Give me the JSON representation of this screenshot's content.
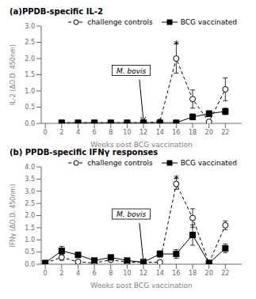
{
  "chart_data": [
    {
      "type": "line",
      "title": "(a)PPDB-specific IL-2",
      "xlabel": "Weeks post BCG vaccination",
      "ylabel": "IL-2 (ΔO.D. 450nm)",
      "xlim": [
        -0.5,
        24
      ],
      "xticks": [
        0,
        2,
        4,
        6,
        8,
        10,
        12,
        14,
        16,
        18,
        20,
        22
      ],
      "ylim": [
        0,
        3.0
      ],
      "yticks": [
        {
          "value": 0,
          "label": "0.0"
        },
        0.5,
        {
          "value": 1,
          "label": "1.0"
        },
        1.5,
        {
          "value": 2,
          "label": "2.0"
        },
        2.5,
        {
          "value": 3,
          "label": "3.0"
        }
      ],
      "grid": false,
      "legend": "upper right",
      "x": [
        2,
        4,
        6,
        8,
        10,
        12,
        14,
        16,
        18,
        20,
        22
      ],
      "series": [
        {
          "name": "challenge controls",
          "color": "#000000",
          "marker": "circle",
          "line_style": "dashed",
          "values": [
            0.02,
            0.02,
            0.02,
            0.02,
            0.02,
            0.02,
            0.05,
            2.0,
            0.75,
            0.05,
            1.05
          ],
          "errors": [
            0.01,
            0.01,
            0.01,
            0.01,
            0.01,
            0.01,
            0.04,
            0.45,
            0.28,
            0.01,
            0.35
          ]
        },
        {
          "name": "BCG vaccinated",
          "color": "#000000",
          "marker": "square",
          "line_style": "solid",
          "values": [
            0.02,
            0.02,
            0.02,
            0.02,
            0.02,
            0.02,
            0.02,
            0.02,
            0.2,
            0.3,
            0.37
          ],
          "errors": [
            0.01,
            0.01,
            0.01,
            0.01,
            0.01,
            0.01,
            0.01,
            0.01,
            0.09,
            0.09,
            0.1
          ]
        }
      ],
      "annotations": [
        {
          "text": "M. bovis",
          "x": 10.5,
          "y": 1.45,
          "arrow_tail": [
            11.5,
            1.35
          ],
          "arrow_head": [
            12,
            0.05
          ]
        },
        {
          "text": "*",
          "x": 16,
          "y": 2.5
        }
      ]
    },
    {
      "type": "line",
      "title": "(b) PPDB-specific IFNγ responses",
      "xlabel": "Weeks post BCG vaccination",
      "ylabel": "IFNγ (ΔO.D. 450nm)",
      "xlim": [
        -0.5,
        24
      ],
      "xticks": [
        0,
        2,
        4,
        6,
        8,
        10,
        12,
        14,
        16,
        18,
        20,
        22
      ],
      "ylim": [
        0,
        4.0
      ],
      "yticks": [
        {
          "value": 0,
          "label": "0.0"
        },
        0.5,
        {
          "value": 1,
          "label": "1.0"
        },
        1.5,
        {
          "value": 2,
          "label": "2.0"
        },
        2.5,
        {
          "value": 3,
          "label": "3.0"
        },
        3.5,
        {
          "value": 4,
          "label": "4.0"
        }
      ],
      "grid": false,
      "legend": "upper right",
      "x": [
        0,
        2,
        4,
        6,
        8,
        10,
        12,
        14,
        16,
        18,
        20,
        22
      ],
      "series": [
        {
          "name": "challenge controls",
          "color": "#000000",
          "marker": "circle",
          "line_style": "dashed",
          "values": [
            0.05,
            0.28,
            0.1,
            0.05,
            0.18,
            0.08,
            0.08,
            0.08,
            3.3,
            1.9,
            0.05,
            1.6
          ],
          "errors": [
            0.02,
            0.12,
            0.05,
            0.02,
            0.07,
            0.04,
            0.04,
            0.04,
            0.22,
            0.38,
            0.02,
            0.18
          ]
        },
        {
          "name": "BCG vaccinated",
          "color": "#000000",
          "marker": "square",
          "line_style": "solid",
          "values": [
            0.05,
            0.55,
            0.38,
            0.15,
            0.28,
            0.15,
            0.08,
            0.42,
            0.42,
            1.2,
            0.05,
            0.65
          ],
          "errors": [
            0.02,
            0.18,
            0.1,
            0.05,
            0.09,
            0.05,
            0.04,
            0.13,
            0.18,
            0.42,
            0.02,
            0.18
          ]
        }
      ],
      "annotations": [
        {
          "text": "M. bovis",
          "x": 10.5,
          "y": 1.82,
          "arrow_tail": [
            11.5,
            1.7
          ],
          "arrow_head": [
            12,
            0.05
          ]
        },
        {
          "text": "*",
          "x": 16,
          "y": 3.58
        }
      ]
    }
  ]
}
